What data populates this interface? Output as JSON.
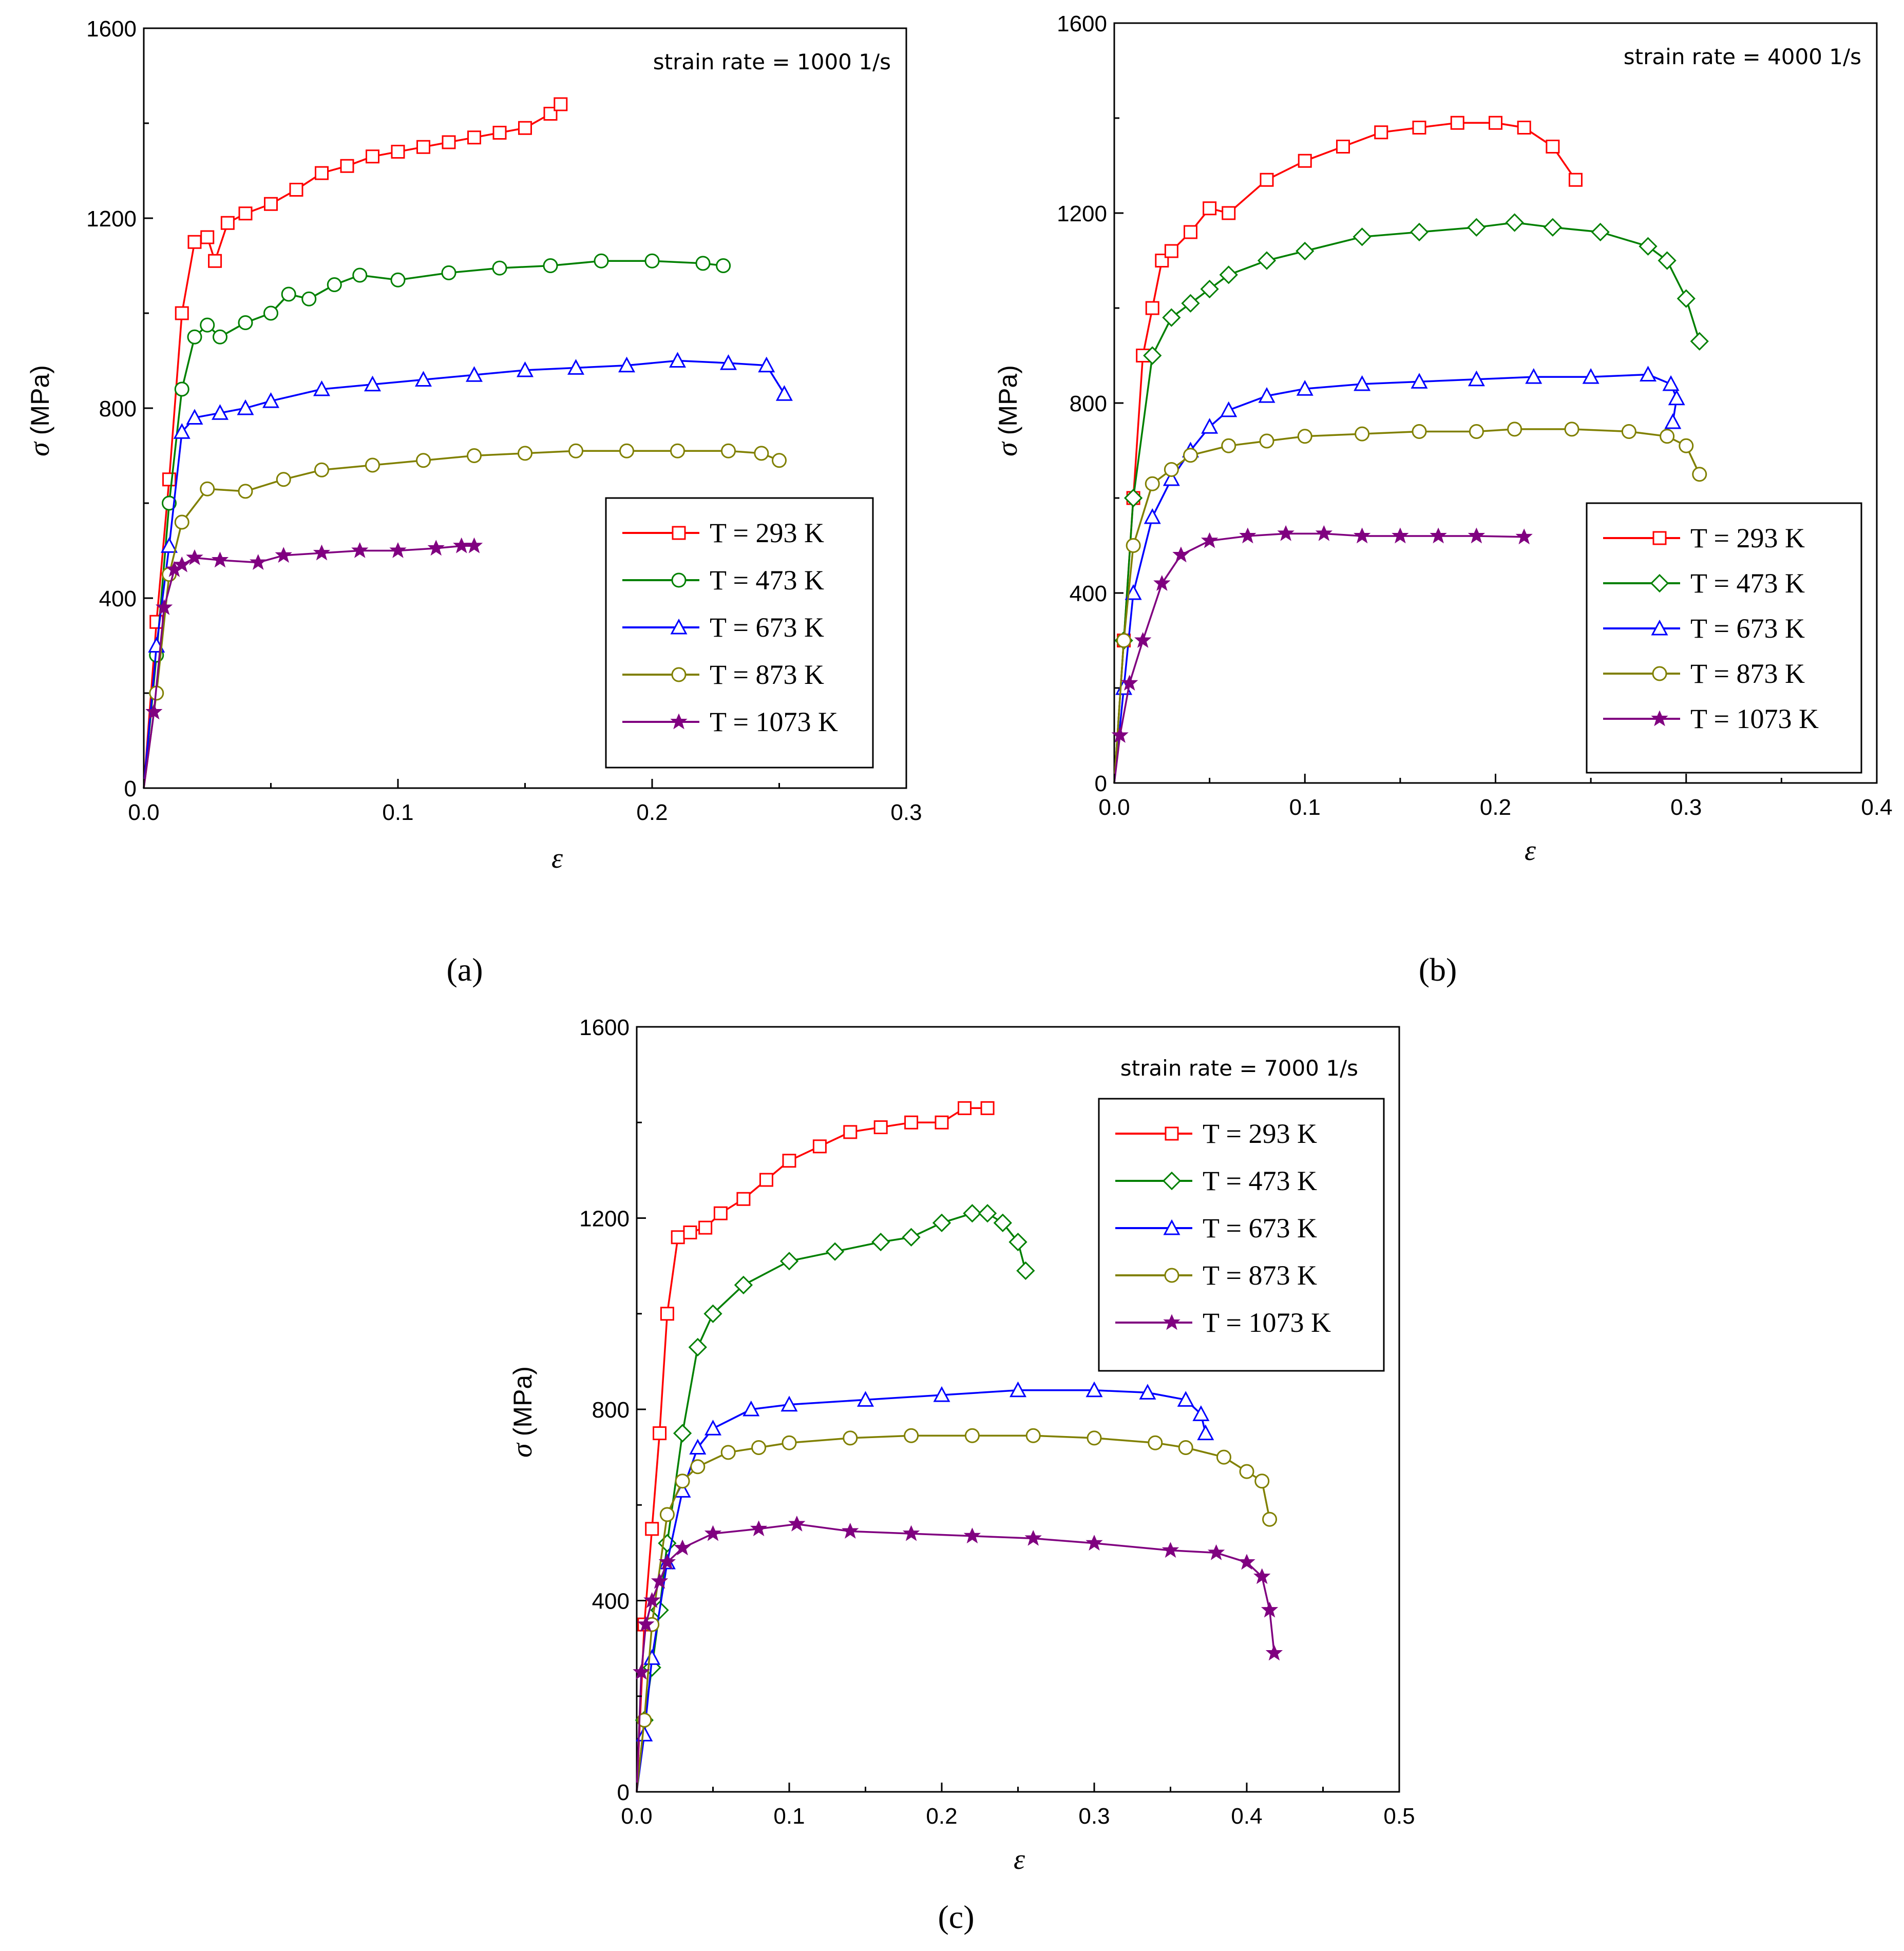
{
  "figure": {
    "y_axis_label_symbol": "σ",
    "y_axis_label_unit": "(MPa)",
    "x_axis_label": "ε"
  },
  "legend_labels": [
    "T = 293 K",
    "T = 473 K",
    "T = 673 K",
    "T = 873 K",
    "T = 1073 K"
  ],
  "colors": {
    "293": "#ff0000",
    "473": "#008000",
    "673": "#0000ff",
    "873": "#808000",
    "1073": "#800080",
    "axis": "#000000"
  },
  "chart_data": [
    {
      "panel_label": "(a)",
      "type": "line",
      "annotation": "strain rate = 1000  1/s",
      "xlabel": "ε",
      "ylabel": "σ (MPa)",
      "xlim": [
        0,
        0.3
      ],
      "ylim": [
        0,
        1600
      ],
      "xticks": [
        0.0,
        0.1,
        0.2,
        0.3
      ],
      "xtick_labels": [
        "0.0",
        "0.1",
        "0.2",
        "0.3"
      ],
      "yticks": [
        0,
        400,
        800,
        1200,
        1600
      ],
      "ytick_labels": [
        "0",
        "400",
        "800",
        "1200",
        "1600"
      ],
      "legend_markers": [
        "square",
        "circle",
        "triangle",
        "circle",
        "star"
      ],
      "series": [
        {
          "name": "T = 293 K",
          "color": "#ff0000",
          "marker": "square",
          "x": [
            0,
            0.005,
            0.01,
            0.015,
            0.02,
            0.025,
            0.028,
            0.033,
            0.04,
            0.05,
            0.06,
            0.07,
            0.08,
            0.09,
            0.1,
            0.11,
            0.12,
            0.13,
            0.14,
            0.15,
            0.16,
            0.164
          ],
          "y": [
            0,
            350,
            650,
            1000,
            1150,
            1160,
            1110,
            1190,
            1210,
            1230,
            1260,
            1295,
            1310,
            1330,
            1340,
            1350,
            1360,
            1370,
            1380,
            1390,
            1420,
            1440
          ]
        },
        {
          "name": "T = 473 K",
          "color": "#008000",
          "marker": "circle",
          "x": [
            0,
            0.005,
            0.01,
            0.015,
            0.02,
            0.025,
            0.03,
            0.04,
            0.05,
            0.057,
            0.065,
            0.075,
            0.085,
            0.1,
            0.12,
            0.14,
            0.16,
            0.18,
            0.2,
            0.22,
            0.228
          ],
          "y": [
            0,
            280,
            600,
            840,
            950,
            975,
            950,
            980,
            1000,
            1040,
            1030,
            1060,
            1080,
            1070,
            1085,
            1095,
            1100,
            1110,
            1110,
            1105,
            1100
          ]
        },
        {
          "name": "T = 673 K",
          "color": "#0000ff",
          "marker": "triangle",
          "x": [
            0,
            0.005,
            0.01,
            0.015,
            0.02,
            0.03,
            0.04,
            0.05,
            0.07,
            0.09,
            0.11,
            0.13,
            0.15,
            0.17,
            0.19,
            0.21,
            0.23,
            0.245,
            0.252
          ],
          "y": [
            0,
            300,
            510,
            750,
            780,
            790,
            800,
            815,
            840,
            850,
            860,
            870,
            880,
            885,
            890,
            900,
            895,
            890,
            830
          ]
        },
        {
          "name": "T = 873 K",
          "color": "#808000",
          "marker": "circle",
          "x": [
            0,
            0.005,
            0.01,
            0.015,
            0.025,
            0.04,
            0.055,
            0.07,
            0.09,
            0.11,
            0.13,
            0.15,
            0.17,
            0.19,
            0.21,
            0.23,
            0.243,
            0.25
          ],
          "y": [
            0,
            200,
            450,
            560,
            630,
            625,
            650,
            670,
            680,
            690,
            700,
            705,
            710,
            710,
            710,
            710,
            705,
            690
          ]
        },
        {
          "name": "T = 1073 K",
          "color": "#800080",
          "marker": "star",
          "x": [
            0,
            0.004,
            0.008,
            0.012,
            0.015,
            0.02,
            0.03,
            0.045,
            0.055,
            0.07,
            0.085,
            0.1,
            0.115,
            0.125,
            0.13
          ],
          "y": [
            0,
            160,
            380,
            460,
            470,
            485,
            480,
            475,
            490,
            495,
            500,
            500,
            505,
            510,
            510
          ]
        }
      ]
    },
    {
      "panel_label": "(b)",
      "type": "line",
      "annotation": "strain rate = 4000  1/s",
      "xlabel": "ε",
      "ylabel": "σ (MPa)",
      "xlim": [
        0,
        0.4
      ],
      "ylim": [
        0,
        1600
      ],
      "xticks": [
        0.0,
        0.1,
        0.2,
        0.3,
        0.4
      ],
      "xtick_labels": [
        "0.0",
        "0.1",
        "0.2",
        "0.3",
        "0.4"
      ],
      "yticks": [
        0,
        400,
        800,
        1200,
        1600
      ],
      "ytick_labels": [
        "0",
        "400",
        "800",
        "1200",
        "1600"
      ],
      "legend_markers": [
        "square",
        "diamond",
        "triangle",
        "circle",
        "star"
      ],
      "series": [
        {
          "name": "T = 293 K",
          "color": "#ff0000",
          "marker": "square",
          "x": [
            0,
            0.005,
            0.01,
            0.015,
            0.02,
            0.025,
            0.03,
            0.04,
            0.05,
            0.06,
            0.08,
            0.1,
            0.12,
            0.14,
            0.16,
            0.18,
            0.2,
            0.215,
            0.23,
            0.242
          ],
          "y": [
            0,
            300,
            600,
            900,
            1000,
            1100,
            1120,
            1160,
            1210,
            1200,
            1270,
            1310,
            1340,
            1370,
            1380,
            1390,
            1390,
            1380,
            1340,
            1270
          ]
        },
        {
          "name": "T = 473 K",
          "color": "#008000",
          "marker": "diamond",
          "x": [
            0,
            0.005,
            0.01,
            0.02,
            0.03,
            0.04,
            0.05,
            0.06,
            0.08,
            0.1,
            0.13,
            0.16,
            0.19,
            0.21,
            0.23,
            0.255,
            0.28,
            0.29,
            0.3,
            0.307
          ],
          "y": [
            0,
            300,
            600,
            900,
            980,
            1010,
            1040,
            1070,
            1100,
            1120,
            1150,
            1160,
            1170,
            1180,
            1170,
            1160,
            1130,
            1100,
            1020,
            930
          ]
        },
        {
          "name": "T = 673 K",
          "color": "#0000ff",
          "marker": "triangle",
          "x": [
            0,
            0.005,
            0.01,
            0.02,
            0.03,
            0.04,
            0.05,
            0.06,
            0.08,
            0.1,
            0.13,
            0.16,
            0.19,
            0.22,
            0.25,
            0.28,
            0.292,
            0.295,
            0.293
          ],
          "y": [
            0,
            200,
            400,
            560,
            640,
            700,
            750,
            785,
            815,
            830,
            840,
            845,
            850,
            855,
            855,
            860,
            840,
            810,
            760
          ]
        },
        {
          "name": "T = 873 K",
          "color": "#808000",
          "marker": "circle",
          "x": [
            0,
            0.005,
            0.01,
            0.02,
            0.03,
            0.04,
            0.06,
            0.08,
            0.1,
            0.13,
            0.16,
            0.19,
            0.21,
            0.24,
            0.27,
            0.29,
            0.3,
            0.307
          ],
          "y": [
            0,
            300,
            500,
            630,
            660,
            690,
            710,
            720,
            730,
            735,
            740,
            740,
            745,
            745,
            740,
            730,
            710,
            650
          ]
        },
        {
          "name": "T = 1073 K",
          "color": "#800080",
          "marker": "star",
          "x": [
            0,
            0.003,
            0.008,
            0.015,
            0.025,
            0.035,
            0.05,
            0.07,
            0.09,
            0.11,
            0.13,
            0.15,
            0.17,
            0.19,
            0.215
          ],
          "y": [
            0,
            100,
            210,
            300,
            420,
            480,
            510,
            520,
            525,
            525,
            520,
            520,
            520,
            520,
            518
          ]
        }
      ]
    },
    {
      "panel_label": "(c)",
      "type": "line",
      "annotation": "strain rate = 7000  1/s",
      "xlabel": "ε",
      "ylabel": "σ (MPa)",
      "xlim": [
        0,
        0.5
      ],
      "ylim": [
        0,
        1600
      ],
      "xticks": [
        0.0,
        0.1,
        0.2,
        0.3,
        0.4,
        0.5
      ],
      "xtick_labels": [
        "0.0",
        "0.1",
        "0.2",
        "0.3",
        "0.4",
        "0.5"
      ],
      "yticks": [
        0,
        400,
        800,
        1200,
        1600
      ],
      "ytick_labels": [
        "0",
        "400",
        "800",
        "1200",
        "1600"
      ],
      "legend_markers": [
        "square",
        "diamond",
        "triangle",
        "circle",
        "star"
      ],
      "series": [
        {
          "name": "T = 293 K",
          "color": "#ff0000",
          "marker": "square",
          "x": [
            0,
            0.005,
            0.01,
            0.015,
            0.02,
            0.027,
            0.035,
            0.045,
            0.055,
            0.07,
            0.085,
            0.1,
            0.12,
            0.14,
            0.16,
            0.18,
            0.2,
            0.215,
            0.23
          ],
          "y": [
            0,
            350,
            550,
            750,
            1000,
            1160,
            1170,
            1180,
            1210,
            1240,
            1280,
            1320,
            1350,
            1380,
            1390,
            1400,
            1400,
            1430,
            1430
          ]
        },
        {
          "name": "T = 473 K",
          "color": "#008000",
          "marker": "diamond",
          "x": [
            0,
            0.005,
            0.01,
            0.015,
            0.02,
            0.03,
            0.04,
            0.05,
            0.07,
            0.1,
            0.13,
            0.16,
            0.18,
            0.2,
            0.22,
            0.23,
            0.24,
            0.25,
            0.255
          ],
          "y": [
            0,
            150,
            260,
            380,
            520,
            750,
            930,
            1000,
            1060,
            1110,
            1130,
            1150,
            1160,
            1190,
            1210,
            1210,
            1190,
            1150,
            1090
          ]
        },
        {
          "name": "T = 673 K",
          "color": "#0000ff",
          "marker": "triangle",
          "x": [
            0,
            0.005,
            0.01,
            0.02,
            0.03,
            0.04,
            0.05,
            0.075,
            0.1,
            0.15,
            0.2,
            0.25,
            0.3,
            0.335,
            0.36,
            0.37,
            0.373
          ],
          "y": [
            0,
            120,
            280,
            480,
            630,
            720,
            760,
            800,
            810,
            820,
            830,
            840,
            840,
            835,
            820,
            790,
            750
          ]
        },
        {
          "name": "T = 873 K",
          "color": "#808000",
          "marker": "circle",
          "x": [
            0,
            0.005,
            0.01,
            0.02,
            0.03,
            0.04,
            0.06,
            0.08,
            0.1,
            0.14,
            0.18,
            0.22,
            0.26,
            0.3,
            0.34,
            0.36,
            0.385,
            0.4,
            0.41,
            0.415
          ],
          "y": [
            0,
            150,
            350,
            580,
            650,
            680,
            710,
            720,
            730,
            740,
            745,
            745,
            745,
            740,
            730,
            720,
            700,
            670,
            650,
            570
          ]
        },
        {
          "name": "T = 1073 K",
          "color": "#800080",
          "marker": "star",
          "x": [
            0,
            0.003,
            0.006,
            0.01,
            0.015,
            0.02,
            0.03,
            0.05,
            0.08,
            0.105,
            0.14,
            0.18,
            0.22,
            0.26,
            0.3,
            0.35,
            0.38,
            0.4,
            0.41,
            0.415,
            0.418
          ],
          "y": [
            0,
            250,
            350,
            400,
            440,
            480,
            510,
            540,
            550,
            560,
            545,
            540,
            535,
            530,
            520,
            505,
            500,
            480,
            450,
            380,
            290
          ]
        }
      ]
    }
  ]
}
